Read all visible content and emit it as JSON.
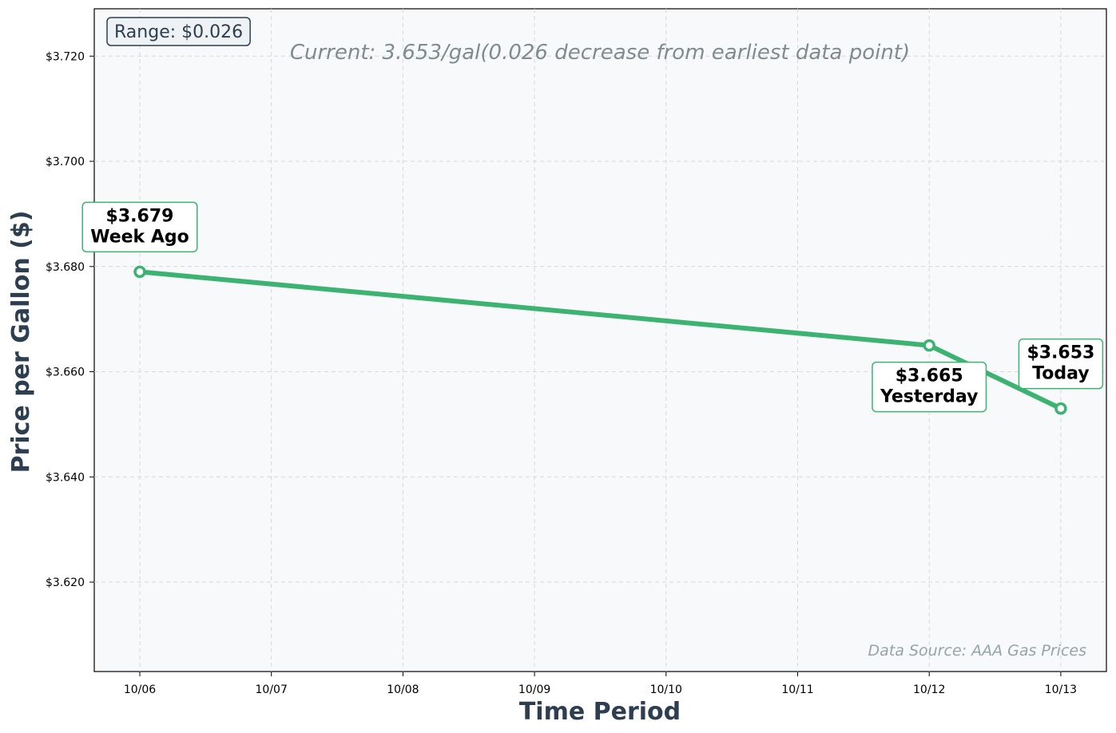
{
  "chart_data": {
    "type": "line",
    "x": [
      "10/06",
      "10/07",
      "10/08",
      "10/09",
      "10/10",
      "10/11",
      "10/12",
      "10/13"
    ],
    "series": [
      {
        "points": [
          {
            "x": "10/06",
            "y": 3.679
          },
          {
            "x": "10/12",
            "y": 3.665
          },
          {
            "x": "10/13",
            "y": 3.653
          }
        ],
        "color": "#3cb371"
      }
    ],
    "annotations": [
      {
        "x": "10/06",
        "value": "$3.679",
        "label": "Week Ago",
        "position": "above"
      },
      {
        "x": "10/12",
        "value": "$3.665",
        "label": "Yesterday",
        "position": "below"
      },
      {
        "x": "10/13",
        "value": "$3.653",
        "label": "Today",
        "position": "above"
      }
    ],
    "xlabel": "Time Period",
    "ylabel": "Price per Gallon ($)",
    "ylim": [
      3.603,
      3.729
    ],
    "yticks": [
      3.62,
      3.64,
      3.66,
      3.68,
      3.7,
      3.72
    ],
    "ytick_labels": [
      "$3.620",
      "$3.640",
      "$3.660",
      "$3.680",
      "$3.700",
      "$3.720"
    ],
    "range_label": "Range: $0.026",
    "current_note": "Current: 3.653/gal(0.026 decrease from earliest data point)",
    "source_note": "Data Source: AAA Gas Prices",
    "grid": true,
    "background": "#f8f9fa",
    "accent_color": "#3cb371",
    "axis_title_color": "#2c3e50"
  }
}
